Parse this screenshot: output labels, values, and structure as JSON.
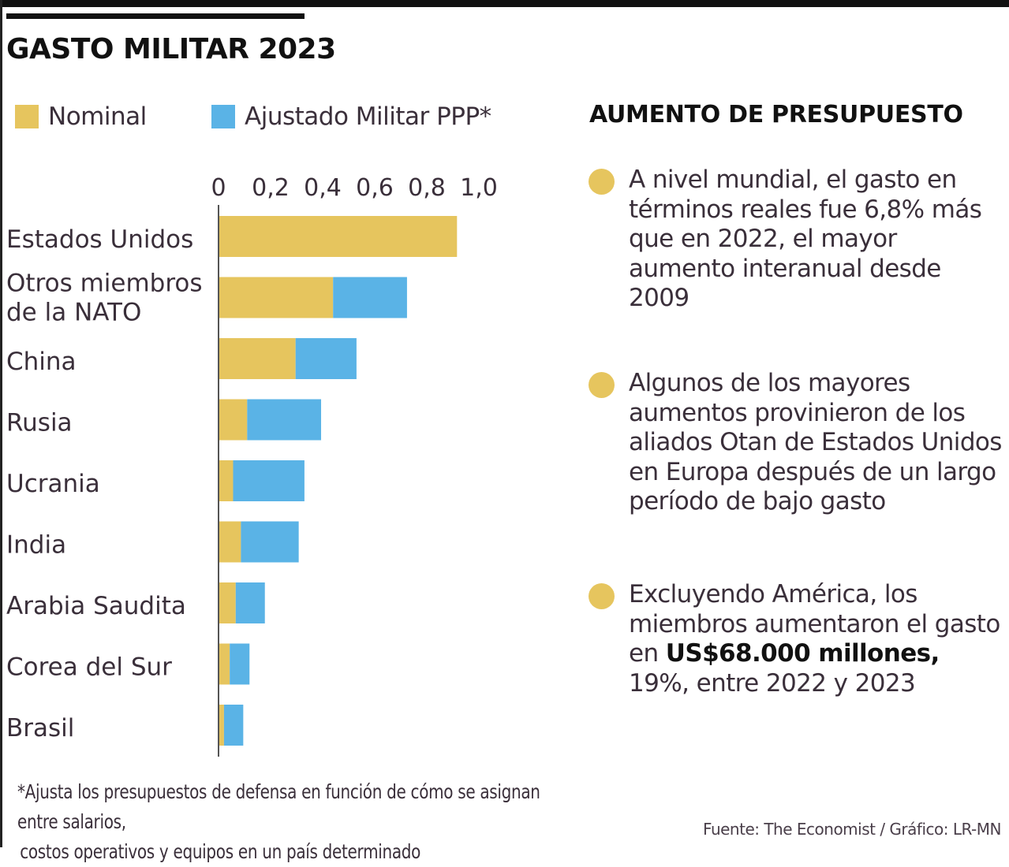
{
  "title": "GASTO MILITAR 2023",
  "legend": [
    {
      "label": "Nominal",
      "color": "#e6c55e"
    },
    {
      "label": "Ajustado Militar PPP*",
      "color": "#5ab3e6"
    }
  ],
  "chart_data": {
    "type": "bar",
    "orientation": "horizontal",
    "stacked": true,
    "categories": [
      [
        "Estados Unidos"
      ],
      [
        "Otros miembros",
        "de la NATO"
      ],
      [
        "China"
      ],
      [
        "Rusia"
      ],
      [
        "Ucrania"
      ],
      [
        "India"
      ],
      [
        "Arabia Saudita"
      ],
      [
        "Corea del Sur"
      ],
      [
        "Brasil"
      ]
    ],
    "series": [
      {
        "name": "Nominal",
        "color": "#e6c55e",
        "values": [
          0.916,
          0.44,
          0.296,
          0.11,
          0.056,
          0.086,
          0.066,
          0.043,
          0.021
        ]
      },
      {
        "name": "Ajustado Militar PPP*",
        "color": "#5ab3e6",
        "values": [
          0.0,
          0.284,
          0.234,
          0.284,
          0.274,
          0.222,
          0.112,
          0.076,
          0.074
        ]
      }
    ],
    "x_ticks": [
      "0",
      "0,2",
      "0,4",
      "0,6",
      "0,8",
      "1,0"
    ],
    "x_tick_values": [
      0,
      0.2,
      0.4,
      0.6,
      0.8,
      1.0
    ],
    "xlim": [
      0,
      1.0
    ],
    "legend_position": "top-left",
    "grid": false
  },
  "side": {
    "heading": "AUMENTO DE PRESUPUESTO",
    "bullets": [
      {
        "text": "A nivel mundial, el gasto en términos reales fue 6,8% más que en 2022, el mayor aumento interanual desde 2009"
      },
      {
        "text": "Algunos de los mayores aumentos provinieron de los aliados Otan de Estados Unidos en Europa después de un largo período de bajo gasto"
      },
      {
        "text_before": "Excluyendo América, los miembros aumentaron el gasto en ",
        "bold": "US$68.000 millones,",
        "text_after": " 19%, entre 2022 y 2023"
      }
    ]
  },
  "footnote": {
    "line1": "*Ajusta los presupuestos de defensa en función de cómo se asignan entre salarios,",
    "line2": "costos operativos y equipos en un país determinado"
  },
  "source": "Fuente: The Economist  / Gráfico: LR-MN",
  "colors": {
    "accent_dot": "#e6c55e",
    "text": "#3a2f3a"
  }
}
